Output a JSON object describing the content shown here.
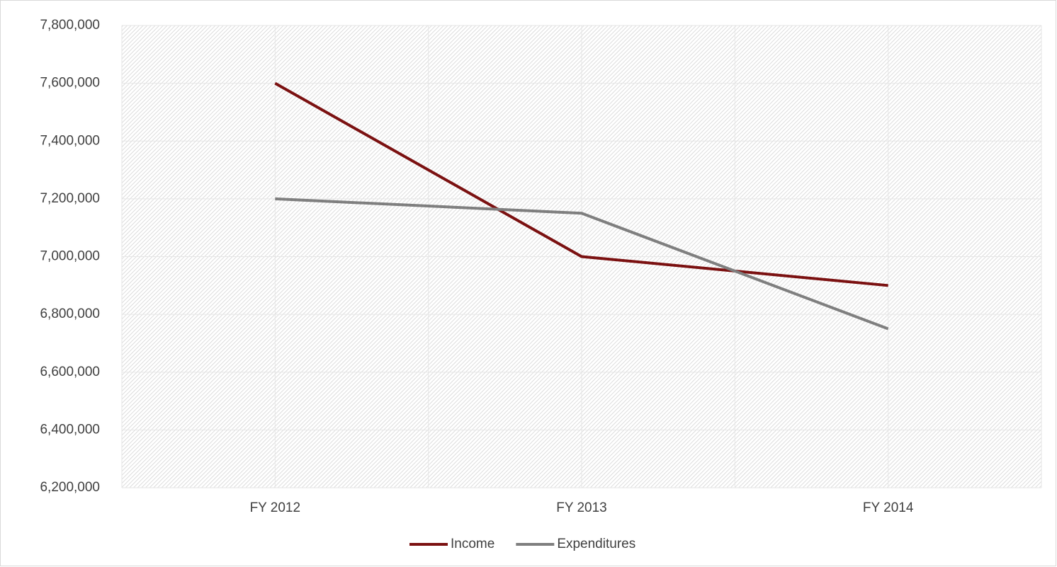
{
  "chart_data": {
    "type": "line",
    "categories": [
      "FY 2012",
      "FY 2013",
      "FY 2014"
    ],
    "series": [
      {
        "name": "Income",
        "color": "#7b1111",
        "values": [
          7600000,
          7000000,
          6900000
        ]
      },
      {
        "name": "Expenditures",
        "color": "#7f7f7f",
        "values": [
          7200000,
          7150000,
          6750000
        ]
      }
    ],
    "ylim": [
      6200000,
      7800000
    ],
    "yticks": [
      {
        "value": 6200000,
        "label": "6,200,000"
      },
      {
        "value": 6400000,
        "label": "6,400,000"
      },
      {
        "value": 6600000,
        "label": "6,600,000"
      },
      {
        "value": 6800000,
        "label": "6,800,000"
      },
      {
        "value": 7000000,
        "label": "7,000,000"
      },
      {
        "value": 7200000,
        "label": "7,200,000"
      },
      {
        "value": 7400000,
        "label": "7,400,000"
      },
      {
        "value": 7600000,
        "label": "7,600,000"
      },
      {
        "value": 7800000,
        "label": "7,800,000"
      }
    ],
    "grid": true,
    "legend": "bottom"
  }
}
